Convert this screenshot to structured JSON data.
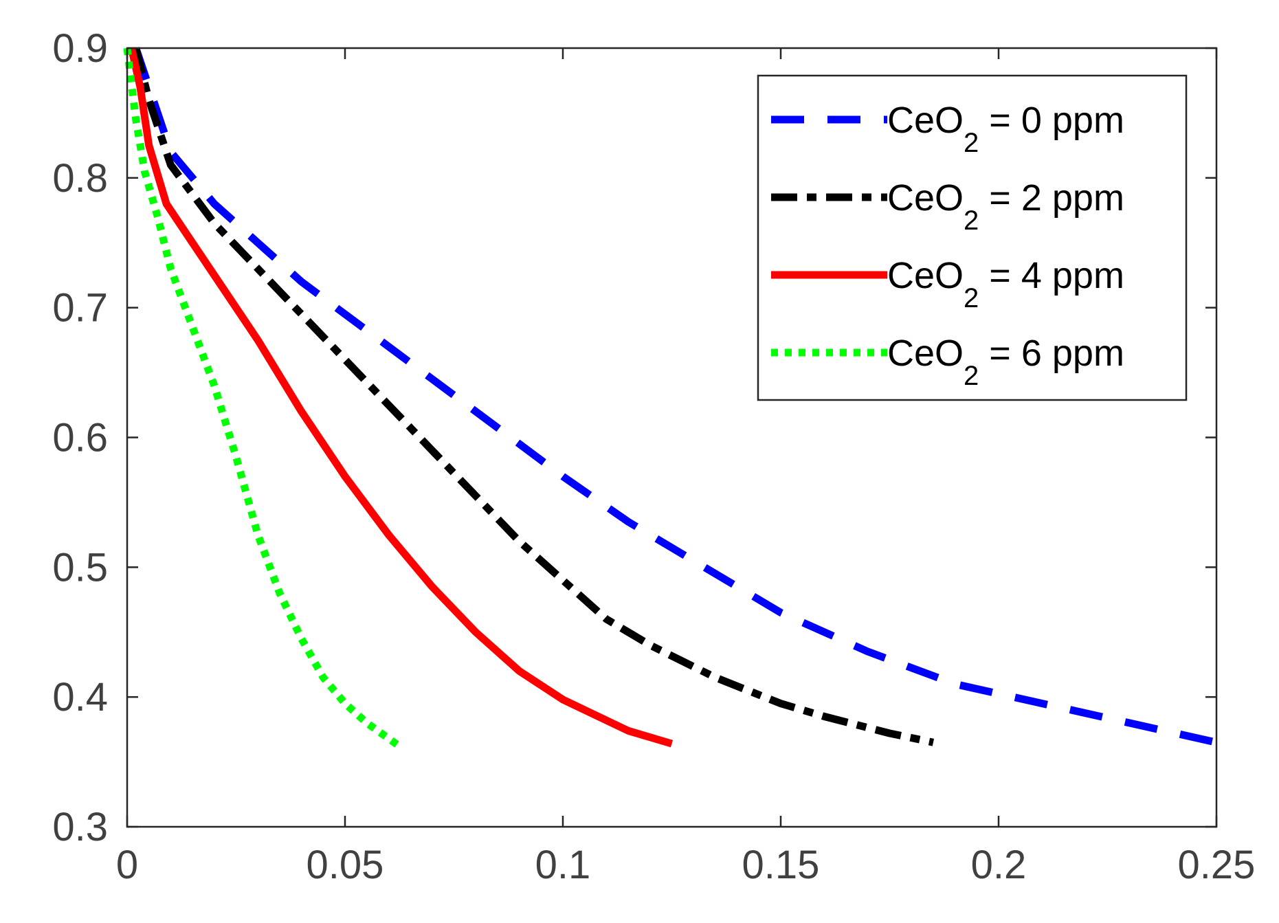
{
  "chart_data": {
    "type": "line",
    "title": "",
    "xlabel": "",
    "ylabel": "",
    "xlim": [
      0,
      0.25
    ],
    "ylim": [
      0.3,
      0.9
    ],
    "xticks": [
      0,
      0.05,
      0.1,
      0.15,
      0.2,
      0.25
    ],
    "xtick_labels": [
      "0",
      "0.05",
      "0.1",
      "0.15",
      "0.2",
      "0.25"
    ],
    "yticks": [
      0.3,
      0.4,
      0.5,
      0.6,
      0.7,
      0.8,
      0.9
    ],
    "ytick_labels": [
      "0.3",
      "0.4",
      "0.5",
      "0.6",
      "0.7",
      "0.8",
      "0.9"
    ],
    "grid": false,
    "legend_position": "top-right",
    "series": [
      {
        "name": "CeO2 = 0 ppm",
        "label_main": "CeO",
        "label_sub": "2",
        "label_rest": " = 0 ppm",
        "color": "#0000ff",
        "style": "dashed",
        "x": [
          0.002,
          0.005,
          0.01,
          0.02,
          0.03,
          0.04,
          0.05,
          0.06,
          0.07,
          0.08,
          0.09,
          0.1,
          0.115,
          0.13,
          0.15,
          0.17,
          0.19,
          0.21,
          0.23,
          0.25
        ],
        "y": [
          0.9,
          0.87,
          0.82,
          0.78,
          0.75,
          0.72,
          0.695,
          0.67,
          0.645,
          0.62,
          0.595,
          0.57,
          0.535,
          0.505,
          0.465,
          0.435,
          0.41,
          0.395,
          0.38,
          0.365
        ]
      },
      {
        "name": "CeO2 = 2 ppm",
        "label_main": "CeO",
        "label_sub": "2",
        "label_rest": " = 2 ppm",
        "color": "#000000",
        "style": "dashdot",
        "x": [
          0.002,
          0.005,
          0.01,
          0.02,
          0.03,
          0.04,
          0.05,
          0.06,
          0.07,
          0.08,
          0.09,
          0.1,
          0.11,
          0.12,
          0.135,
          0.15,
          0.16,
          0.175,
          0.185
        ],
        "y": [
          0.9,
          0.86,
          0.81,
          0.765,
          0.73,
          0.695,
          0.66,
          0.625,
          0.59,
          0.555,
          0.52,
          0.49,
          0.46,
          0.44,
          0.415,
          0.395,
          0.385,
          0.372,
          0.365
        ]
      },
      {
        "name": "CeO2 = 4 ppm",
        "label_main": "CeO",
        "label_sub": "2",
        "label_rest": " = 4 ppm",
        "color": "#ff0000",
        "style": "solid",
        "x": [
          0.001,
          0.003,
          0.005,
          0.009,
          0.015,
          0.02,
          0.025,
          0.03,
          0.04,
          0.05,
          0.06,
          0.07,
          0.08,
          0.09,
          0.1,
          0.11,
          0.115,
          0.125
        ],
        "y": [
          0.9,
          0.87,
          0.825,
          0.78,
          0.75,
          0.725,
          0.7,
          0.675,
          0.62,
          0.57,
          0.525,
          0.485,
          0.45,
          0.42,
          0.398,
          0.382,
          0.374,
          0.364
        ]
      },
      {
        "name": "CeO2 = 6 ppm",
        "label_main": "CeO",
        "label_sub": "2",
        "label_rest": " = 6 ppm",
        "color": "#00ff00",
        "style": "dotted",
        "x": [
          0.0,
          0.002,
          0.004,
          0.007,
          0.01,
          0.015,
          0.02,
          0.025,
          0.03,
          0.035,
          0.04,
          0.045,
          0.05,
          0.055,
          0.06,
          0.0625
        ],
        "y": [
          0.9,
          0.845,
          0.805,
          0.77,
          0.73,
          0.685,
          0.64,
          0.585,
          0.525,
          0.48,
          0.445,
          0.415,
          0.395,
          0.38,
          0.368,
          0.362
        ]
      }
    ]
  }
}
